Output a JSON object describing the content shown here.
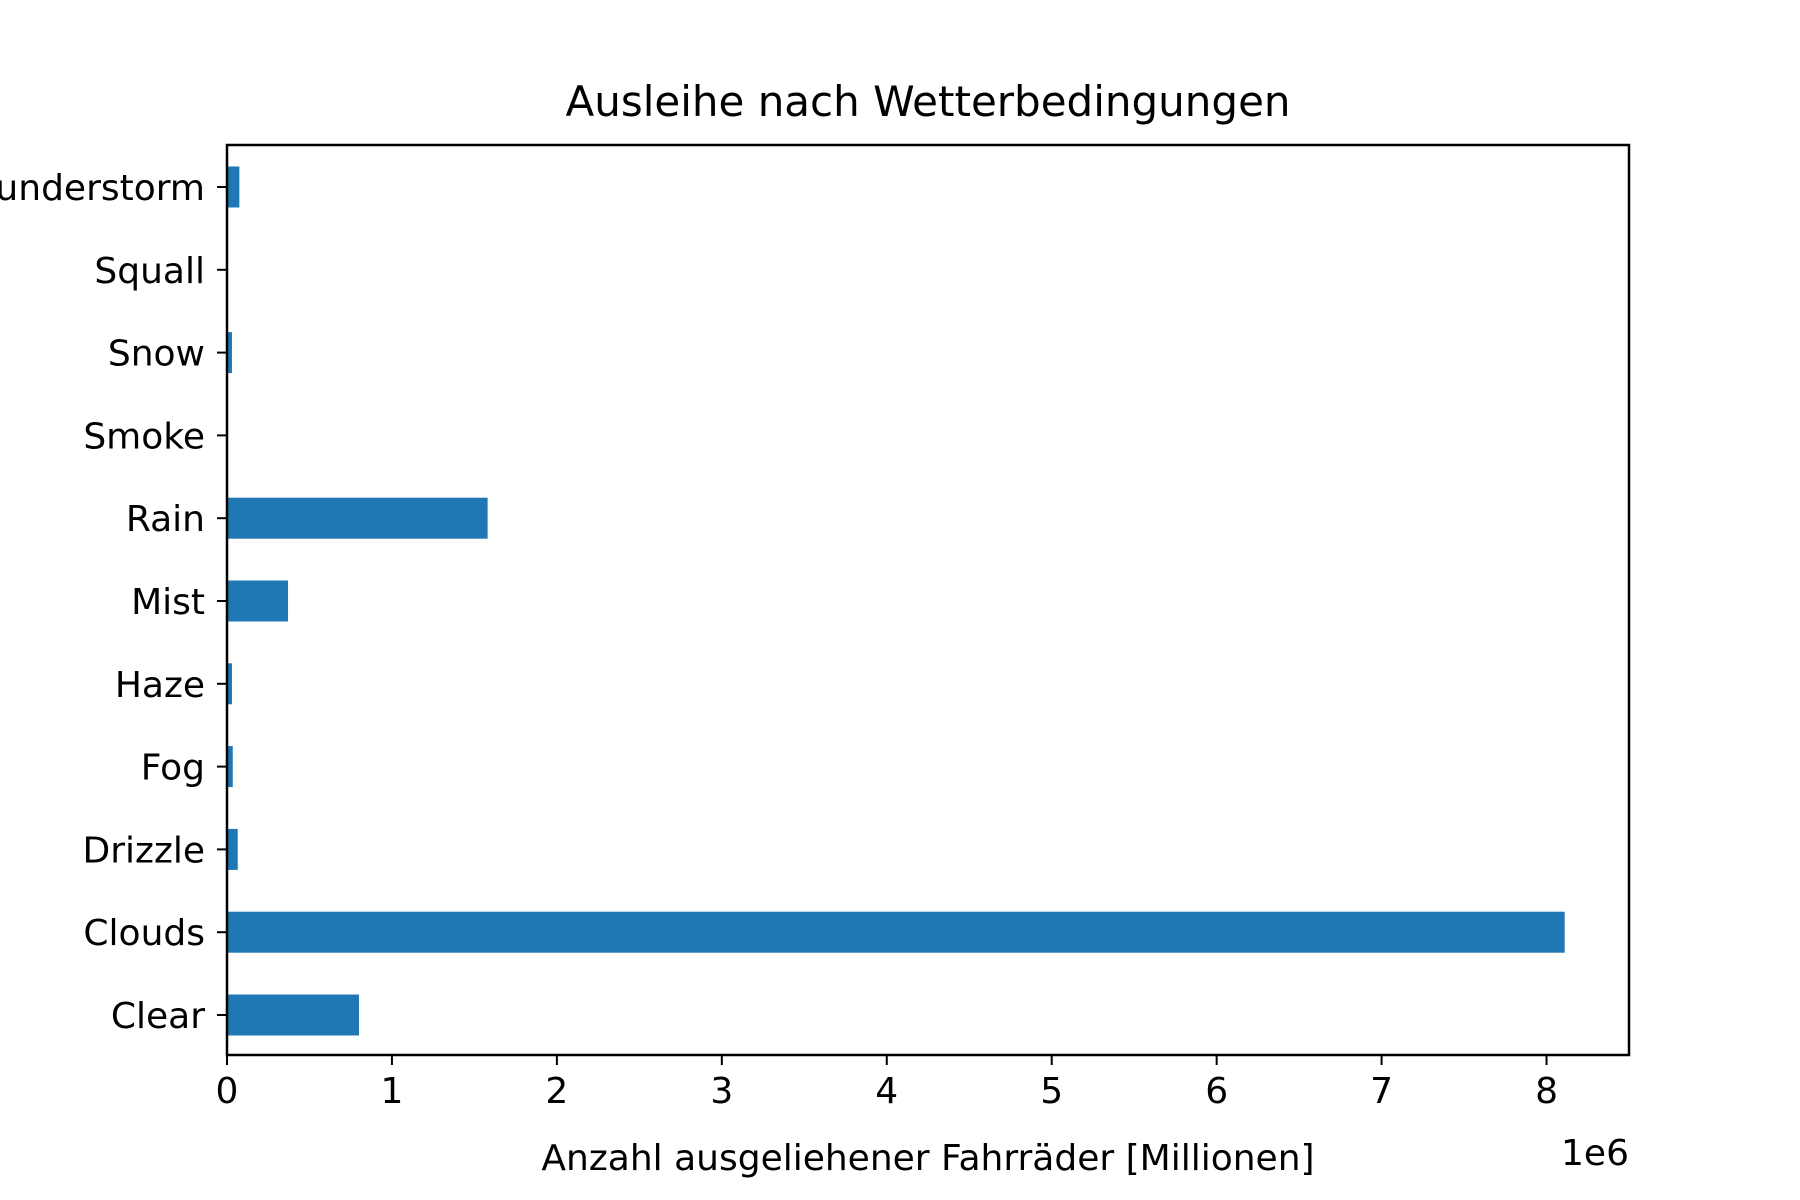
{
  "chart_data": {
    "type": "bar",
    "orientation": "horizontal",
    "title": "Ausleihe nach Wetterbedingungen",
    "xlabel": "Anzahl ausgeliehener Fahrräder [Millionen]",
    "ylabel": "",
    "x_offset_label": "1e6",
    "xlim": [
      0,
      8.5
    ],
    "x_ticks": [
      0,
      1,
      2,
      3,
      4,
      5,
      6,
      7,
      8
    ],
    "x_tick_labels": [
      "0",
      "1",
      "2",
      "3",
      "4",
      "5",
      "6",
      "7",
      "8"
    ],
    "categories": [
      "Clear",
      "Clouds",
      "Drizzle",
      "Fog",
      "Haze",
      "Mist",
      "Rain",
      "Smoke",
      "Snow",
      "Squall",
      "Thunderstorm"
    ],
    "values": [
      0.8,
      8.11,
      0.065,
      0.035,
      0.03,
      0.37,
      1.58,
      0.002,
      0.03,
      0.001,
      0.075
    ],
    "bar_color": "#1f77b4",
    "grid": false,
    "legend": "none"
  }
}
